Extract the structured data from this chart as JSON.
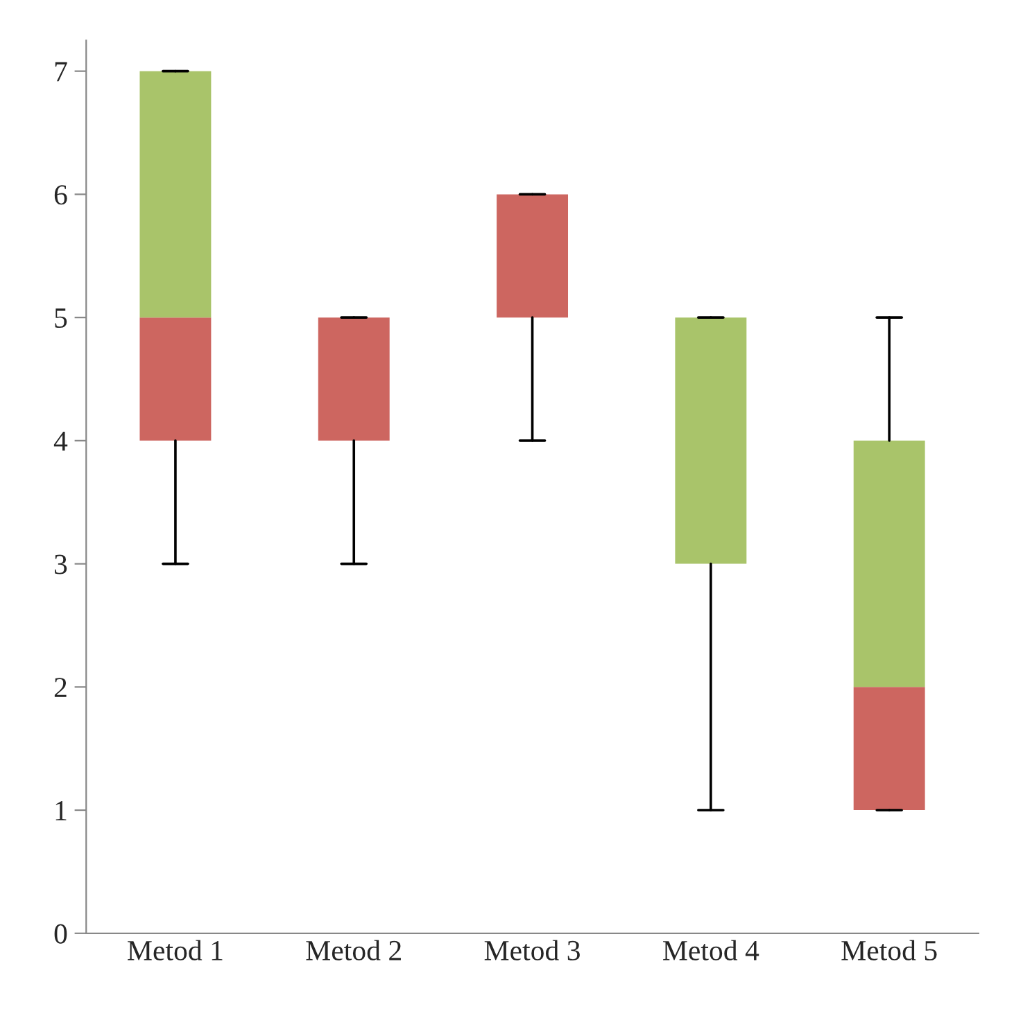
{
  "chart_data": {
    "type": "box",
    "categories": [
      "Metod 1",
      "Metod 2",
      "Metod 3",
      "Metod 4",
      "Metod 5"
    ],
    "boxes": [
      {
        "low": 3,
        "q1": 4,
        "median": 5,
        "q3": 7,
        "high": 7
      },
      {
        "low": 3,
        "q1": 4,
        "median": 5,
        "q3": 5,
        "high": 5
      },
      {
        "low": 4,
        "q1": 5,
        "median": 6,
        "q3": 6,
        "high": 6
      },
      {
        "low": 1,
        "q1": 3,
        "median": 3,
        "q3": 5,
        "high": 5
      },
      {
        "low": 1,
        "q1": 1,
        "median": 2,
        "q3": 4,
        "high": 5
      }
    ],
    "colors": [
      [
        "#cd6660",
        "#a9c46a"
      ],
      [
        "#cd6660",
        "#a9c46a"
      ],
      [
        "#cd6660",
        "#a9c46a"
      ],
      [
        "#cd6660",
        "#a9c46a"
      ],
      [
        "#cd6660",
        "#a9c46a"
      ]
    ],
    "ylim": [
      0,
      7.25
    ],
    "yticks": [
      0,
      1,
      2,
      3,
      4,
      5,
      6,
      7
    ],
    "grid": false,
    "legend": false
  }
}
